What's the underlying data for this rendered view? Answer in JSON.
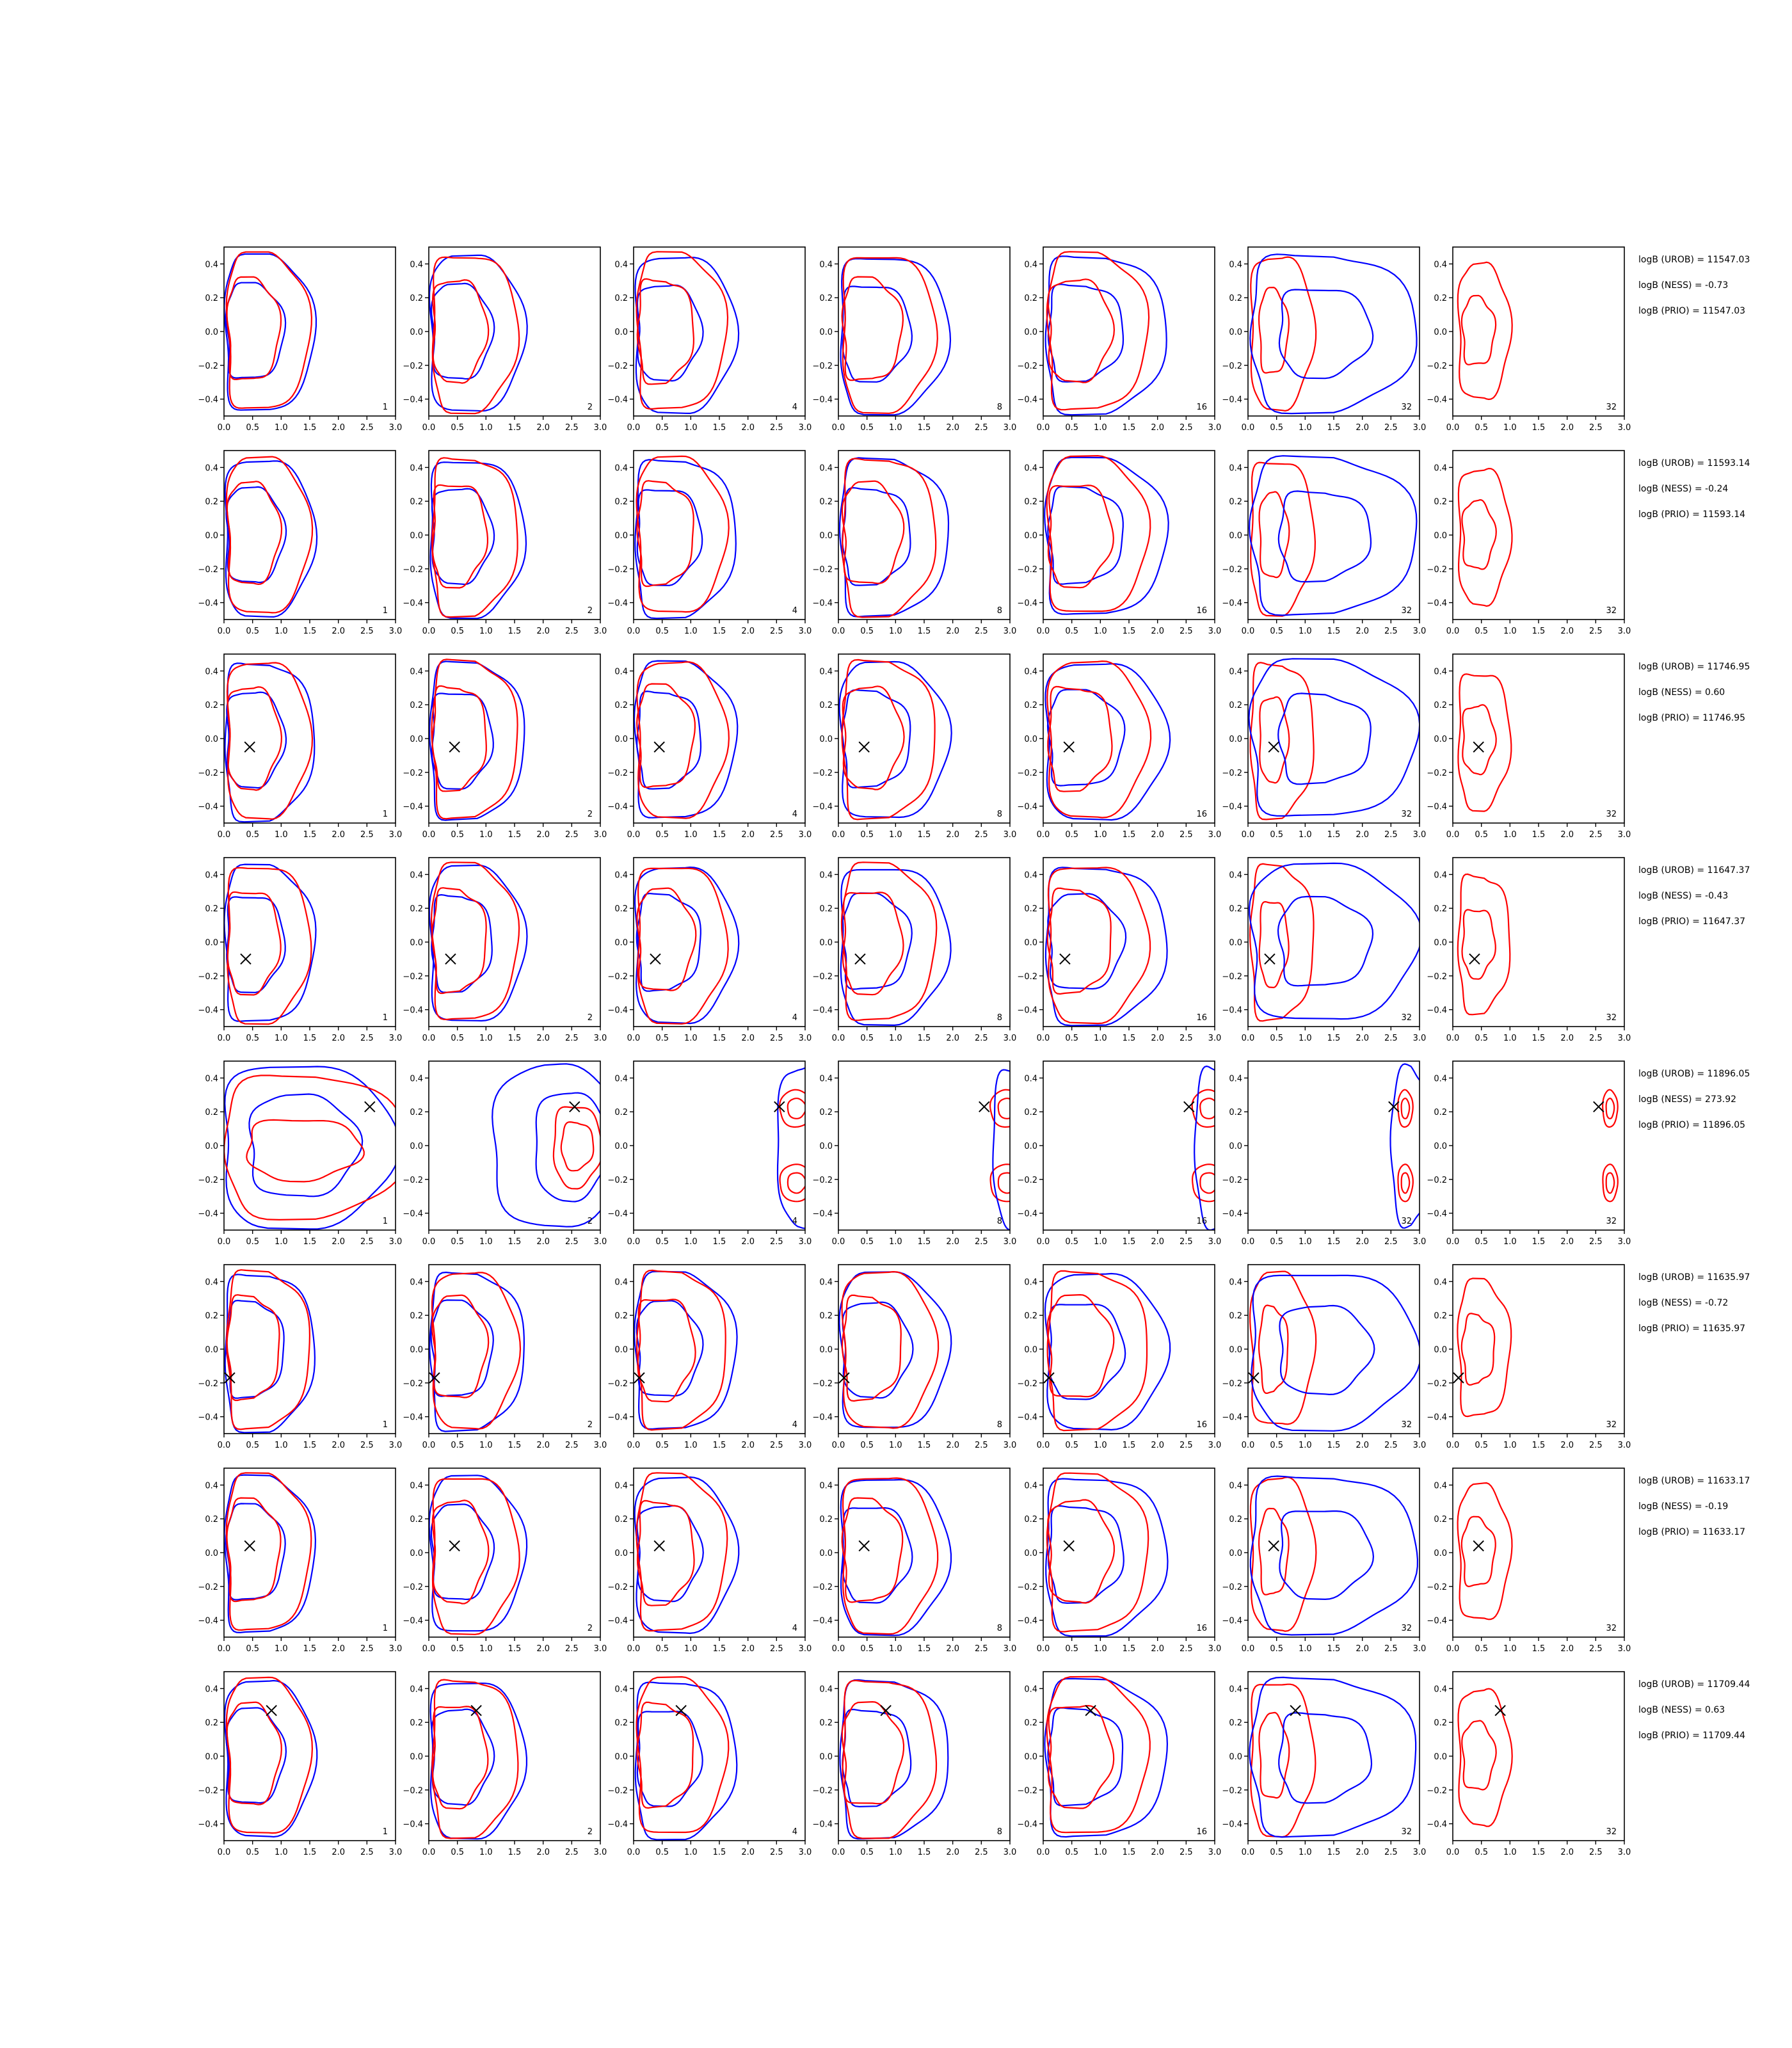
{
  "chart_data": {
    "type": "line",
    "rows": 8,
    "cols": 7,
    "xlim": [
      0.0,
      3.0
    ],
    "ylim": [
      -0.5,
      0.5
    ],
    "xticks": [
      "0.0",
      "0.5",
      "1.0",
      "1.5",
      "2.0",
      "2.5",
      "3.0"
    ],
    "yticks": [
      "0.4",
      "0.2",
      "0.0",
      "−0.2",
      "−0.4"
    ],
    "ytick_values": [
      0.4,
      0.2,
      0.0,
      -0.2,
      -0.4
    ],
    "panel_labels": [
      "1",
      "2",
      "4",
      "8",
      "16",
      "32",
      "32"
    ],
    "colors": {
      "contour_a": "#ff0000",
      "contour_b": "#0000ff",
      "marker": "#000000"
    },
    "marker_symbol": "×",
    "markers": [
      null,
      null,
      [
        0.45,
        -0.05
      ],
      [
        0.38,
        -0.1
      ],
      [
        2.55,
        0.23
      ],
      [
        0.1,
        -0.17
      ],
      [
        0.45,
        0.04
      ],
      [
        0.83,
        0.27
      ]
    ],
    "logB": [
      [
        "logB (UROB) = 11547.03",
        "logB (NESS) = -0.73",
        "logB (PRIO) = 11547.03"
      ],
      [
        "logB (UROB) = 11593.14",
        "logB (NESS) = -0.24",
        "logB (PRIO) = 11593.14"
      ],
      [
        "logB (UROB) = 11746.95",
        "logB (NESS) = 0.60",
        "logB (PRIO) = 11746.95"
      ],
      [
        "logB (UROB) = 11647.37",
        "logB (NESS) = -0.43",
        "logB (PRIO) = 11647.37"
      ],
      [
        "logB (UROB) = 11896.05",
        "logB (NESS) = 273.92",
        "logB (PRIO) = 11896.05"
      ],
      [
        "logB (UROB) = 11635.97",
        "logB (NESS) = -0.72",
        "logB (PRIO) = 11635.97"
      ],
      [
        "logB (UROB) = 11633.17",
        "logB (NESS) = -0.19",
        "logB (PRIO) = 11633.17"
      ],
      [
        "logB (UROB) = 11709.44",
        "logB (NESS) = 0.63",
        "logB (PRIO) = 11709.44"
      ]
    ]
  }
}
